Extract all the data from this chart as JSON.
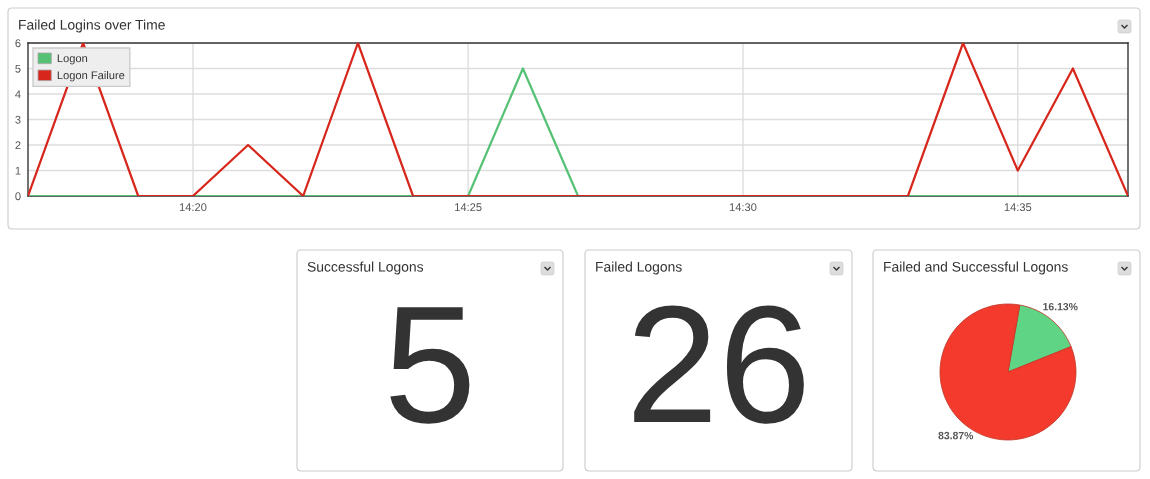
{
  "chart_data": [
    {
      "type": "line",
      "title": "Failed Logins over Time",
      "x": [
        14.2833,
        14.3,
        14.3167,
        14.3333,
        14.35,
        14.3667,
        14.3833,
        14.4,
        14.4167,
        14.4333,
        14.45,
        14.4667,
        14.4833,
        14.5,
        14.5167,
        14.5333,
        14.55,
        14.5667,
        14.5833,
        14.6,
        14.6167
      ],
      "xlim": [
        14.2833,
        14.6167
      ],
      "xticks": [
        {
          "value": 14.3333,
          "label": "14:20"
        },
        {
          "value": 14.4167,
          "label": "14:25"
        },
        {
          "value": 14.5,
          "label": "14:30"
        },
        {
          "value": 14.5833,
          "label": "14:35"
        }
      ],
      "ylim": [
        0,
        6
      ],
      "yticks": [
        0,
        1,
        2,
        3,
        4,
        5,
        6
      ],
      "grid": true,
      "legend": "top left",
      "series": [
        {
          "name": "Logon",
          "color": "#55c174",
          "values": [
            0,
            0,
            0,
            0,
            0,
            0,
            0,
            0,
            0,
            5,
            0,
            0,
            0,
            0,
            0,
            0,
            0,
            0,
            0,
            0,
            0
          ]
        },
        {
          "name": "Logon Failure",
          "color": "#d7261b",
          "values": [
            0,
            6,
            0,
            0,
            2,
            0,
            6,
            0,
            0,
            0,
            0,
            0,
            0,
            0,
            0,
            0,
            0,
            6,
            1,
            5,
            0
          ]
        }
      ]
    },
    {
      "type": "other",
      "title": "Successful Logons",
      "annotations": [
        "5"
      ]
    },
    {
      "type": "other",
      "title": "Failed Logons",
      "annotations": [
        "26"
      ]
    },
    {
      "type": "pie",
      "title": "Failed and Successful Logons",
      "categories": [
        null,
        null
      ],
      "values": [
        16.13,
        83.87
      ],
      "colors": [
        "#5fd484",
        "#f43a2c"
      ],
      "value_labels": [
        "16.13%",
        "83.87%"
      ]
    }
  ]
}
